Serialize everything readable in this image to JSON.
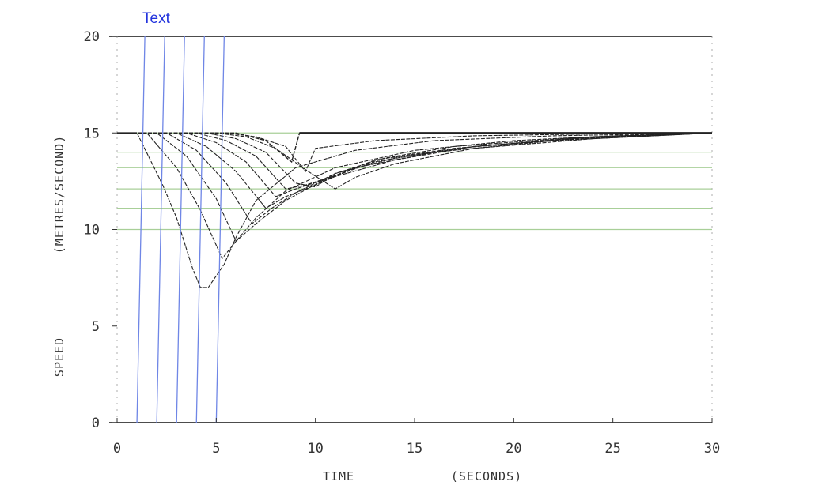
{
  "chart_data": {
    "type": "line",
    "annotation": "Text",
    "xlabel_left": "TIME",
    "xlabel_right": "(SECONDS)",
    "ylabel_left": "SPEED",
    "ylabel_right": "(METRES/SECOND)",
    "xlim": [
      0,
      30
    ],
    "ylim": [
      0,
      20
    ],
    "x_ticks": [
      "0",
      "5",
      "10",
      "15",
      "20",
      "25",
      "30"
    ],
    "y_ticks": [
      "0",
      "5",
      "10",
      "15",
      "20"
    ],
    "grid": false,
    "colors": {
      "curves": "#222222",
      "overlay_blue": "#6f86e6",
      "overlay_green": "#a8cf98",
      "axis": "#111111"
    },
    "series": [
      {
        "x": [
          0,
          1.0,
          2.3,
          3.0,
          3.8,
          4.2,
          4.6,
          5.4,
          6.0,
          7.0,
          9.0,
          12.0,
          16.0,
          22.0,
          30.0
        ],
        "y": [
          15,
          15,
          12.3,
          10.6,
          8.0,
          7.0,
          7.0,
          8.2,
          9.6,
          11.5,
          13.2,
          14.1,
          14.6,
          14.85,
          15.0
        ]
      },
      {
        "x": [
          0,
          1.5,
          3.0,
          4.2,
          5.3,
          6.0,
          7.0,
          8.5,
          11.0,
          15.0,
          20.0,
          25.0,
          30.0
        ],
        "y": [
          15,
          15,
          13.2,
          11.0,
          8.5,
          9.4,
          10.6,
          12.0,
          13.2,
          14.1,
          14.6,
          14.85,
          15.0
        ]
      },
      {
        "x": [
          0,
          2.0,
          3.5,
          5.0,
          6.0,
          7.0,
          8.5,
          10.5,
          14.0,
          18.0,
          24.0,
          30.0
        ],
        "y": [
          15,
          15,
          13.8,
          11.6,
          9.4,
          10.3,
          11.5,
          12.6,
          13.6,
          14.3,
          14.75,
          15.0
        ]
      },
      {
        "x": [
          0,
          2.5,
          4.0,
          5.5,
          6.8,
          7.8,
          9.0,
          11.0,
          14.0,
          18.0,
          24.0,
          30.0
        ],
        "y": [
          15,
          15,
          14.1,
          12.4,
          10.3,
          11.1,
          11.9,
          12.9,
          13.7,
          14.3,
          14.8,
          15.0
        ]
      },
      {
        "x": [
          0,
          3.0,
          4.5,
          6.0,
          7.5,
          8.5,
          10.0,
          12.0,
          16.0,
          22.0,
          30.0
        ],
        "y": [
          15,
          15,
          14.3,
          13.0,
          11.1,
          11.7,
          12.3,
          13.2,
          14.0,
          14.6,
          15.0
        ]
      },
      {
        "x": [
          0,
          3.5,
          5.0,
          6.5,
          8.0,
          9.0,
          10.5,
          13.0,
          17.0,
          23.0,
          30.0
        ],
        "y": [
          15,
          15,
          14.5,
          13.5,
          11.7,
          12.1,
          12.6,
          13.5,
          14.2,
          14.7,
          15.0
        ]
      },
      {
        "x": [
          0,
          4.0,
          5.5,
          7.0,
          8.5,
          9.5,
          11.0,
          13.0,
          17.0,
          23.0,
          30.0
        ],
        "y": [
          15,
          15,
          14.6,
          13.8,
          12.1,
          12.3,
          12.8,
          13.6,
          14.2,
          14.7,
          15.0
        ]
      },
      {
        "x": [
          0,
          4.5,
          6.0,
          7.5,
          9.0,
          10.0,
          11.0,
          13.5,
          17.0,
          23.0,
          30.0
        ],
        "y": [
          15,
          15,
          14.7,
          14.0,
          12.4,
          12.2,
          12.9,
          13.7,
          14.3,
          14.75,
          15.0
        ]
      },
      {
        "x": [
          0,
          5.0,
          6.5,
          8.0,
          9.5,
          11.0,
          12.0,
          14.0,
          18.0,
          24.0,
          30.0
        ],
        "y": [
          15,
          15,
          14.8,
          14.2,
          13.1,
          12.1,
          12.7,
          13.4,
          14.2,
          14.7,
          15.0
        ]
      },
      {
        "x": [
          0,
          5.5,
          7.0,
          8.5,
          9.5,
          10.0,
          13.0,
          18.0,
          24.0,
          30.0
        ],
        "y": [
          15,
          15,
          14.8,
          14.3,
          13.0,
          14.2,
          14.6,
          14.85,
          14.95,
          15.0
        ]
      },
      {
        "x": [
          0,
          6.0,
          7.5,
          8.8,
          9.2,
          12.0,
          20.0,
          30.0
        ],
        "y": [
          15,
          15,
          14.6,
          13.5,
          15.0,
          15.0,
          15.0,
          15.0
        ]
      }
    ],
    "overlay_blue_lines": [
      {
        "x_top": 1.4,
        "x_bottom": 1.0
      },
      {
        "x_top": 2.4,
        "x_bottom": 2.0
      },
      {
        "x_top": 3.4,
        "x_bottom": 3.0
      },
      {
        "x_top": 4.4,
        "x_bottom": 4.0
      },
      {
        "x_top": 5.4,
        "x_bottom": 5.0
      }
    ],
    "overlay_green_lines": [
      15.0,
      14.0,
      13.2,
      12.1,
      11.1,
      10.0
    ]
  }
}
